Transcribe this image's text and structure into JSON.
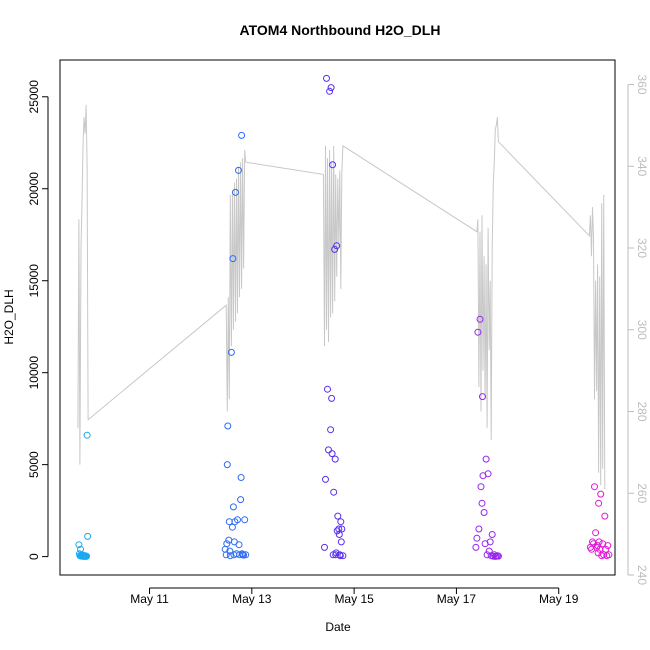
{
  "chart_data": {
    "type": "scatter",
    "title": "ATOM4 Northbound H2O_DLH",
    "xlabel": "Date",
    "ylabel": "H2O_DLH",
    "x_tick_labels": [
      "May 11",
      "May 13",
      "May 15",
      "May 17",
      "May 19"
    ],
    "x_tick_days": [
      11,
      13,
      15,
      17,
      19
    ],
    "xlim_days": [
      9.25,
      20.1
    ],
    "ylim": [
      -1000,
      27000
    ],
    "y_ticks": [
      0,
      5000,
      10000,
      15000,
      20000,
      25000
    ],
    "y2lim": [
      240,
      366
    ],
    "y2_ticks": [
      240,
      260,
      280,
      300,
      320,
      340,
      360
    ],
    "grid": false,
    "legend": "none",
    "colors": {
      "line": "#c8c8c8",
      "axis": "#000000",
      "right_axis": "#bdbdbd",
      "flight1": "#19a9f0",
      "flight2": "#2f6cf5",
      "flight3": "#5a2ef2",
      "flight4": "#9626ee",
      "flight5": "#e21ad4"
    },
    "series": [
      {
        "color_key": "flight1",
        "x": [
          9.62,
          9.63,
          9.64,
          9.65,
          9.66,
          9.67,
          9.68,
          9.69,
          9.7,
          9.71,
          9.72,
          9.73,
          9.74,
          9.75,
          9.76,
          9.77,
          9.78,
          9.79
        ],
        "y": [
          650,
          150,
          50,
          400,
          30,
          80,
          100,
          20,
          50,
          10,
          60,
          20,
          10,
          40,
          10,
          20,
          6600,
          1100
        ]
      },
      {
        "color_key": "flight2",
        "x": [
          12.48,
          12.5,
          12.51,
          12.52,
          12.53,
          12.55,
          12.56,
          12.57,
          12.58,
          12.6,
          12.62,
          12.63,
          12.64,
          12.65,
          12.66,
          12.67,
          12.68,
          12.7,
          12.72,
          12.74,
          12.75,
          12.76,
          12.78,
          12.79,
          12.8,
          12.81,
          12.82,
          12.84,
          12.86,
          12.88
        ],
        "y": [
          400,
          100,
          700,
          5000,
          7100,
          900,
          1900,
          300,
          50,
          11100,
          1600,
          16200,
          2700,
          100,
          800,
          1900,
          19800,
          150,
          2000,
          21000,
          650,
          100,
          3100,
          4300,
          22900,
          150,
          100,
          80,
          2000,
          100
        ]
      },
      {
        "color_key": "flight3",
        "x": [
          14.42,
          14.44,
          14.46,
          14.48,
          14.5,
          14.52,
          14.54,
          14.55,
          14.56,
          14.57,
          14.58,
          14.59,
          14.6,
          14.62,
          14.63,
          14.64,
          14.65,
          14.66,
          14.67,
          14.68,
          14.7,
          14.71,
          14.72,
          14.73,
          14.74,
          14.75,
          14.76,
          14.78
        ],
        "y": [
          500,
          4200,
          26000,
          9100,
          5800,
          25300,
          6900,
          25500,
          8600,
          5600,
          21300,
          100,
          3500,
          16700,
          5300,
          100,
          200,
          16900,
          1400,
          2200,
          1500,
          1200,
          100,
          50,
          1900,
          800,
          1500,
          50
        ]
      },
      {
        "color_key": "flight4",
        "x": [
          17.38,
          17.4,
          17.42,
          17.44,
          17.46,
          17.48,
          17.5,
          17.51,
          17.52,
          17.54,
          17.56,
          17.58,
          17.6,
          17.62,
          17.64,
          17.66,
          17.68,
          17.7,
          17.72,
          17.74,
          17.76,
          17.78,
          17.8,
          17.82
        ],
        "y": [
          500,
          1000,
          12200,
          1500,
          12900,
          3800,
          2900,
          8700,
          4400,
          2400,
          700,
          5300,
          100,
          4500,
          300,
          800,
          50,
          1200,
          20,
          100,
          10,
          20,
          50,
          30
        ]
      },
      {
        "color_key": "flight5",
        "x": [
          19.62,
          19.64,
          19.66,
          19.68,
          19.7,
          19.72,
          19.74,
          19.76,
          19.77,
          19.78,
          19.79,
          19.8,
          19.82,
          19.84,
          19.86,
          19.88,
          19.9,
          19.92,
          19.94,
          19.96,
          19.98
        ],
        "y": [
          500,
          400,
          800,
          700,
          3800,
          1300,
          500,
          600,
          200,
          2900,
          800,
          400,
          3400,
          50,
          700,
          100,
          2200,
          400,
          50,
          600,
          100
        ]
      }
    ],
    "line_series_y2": {
      "x": [
        9.6,
        9.62,
        9.64,
        9.66,
        9.68,
        9.7,
        9.72,
        9.74,
        9.76,
        9.78,
        9.8,
        12.5,
        12.52,
        12.54,
        12.56,
        12.58,
        12.6,
        12.62,
        12.64,
        12.66,
        12.68,
        12.7,
        12.72,
        12.74,
        12.76,
        12.78,
        12.8,
        12.82,
        12.84,
        12.86,
        12.88,
        14.4,
        14.42,
        14.44,
        14.46,
        14.48,
        14.5,
        14.52,
        14.54,
        14.56,
        14.58,
        14.6,
        14.62,
        14.64,
        14.66,
        14.68,
        14.7,
        14.72,
        14.74,
        14.76,
        14.78,
        17.4,
        17.42,
        17.44,
        17.46,
        17.48,
        17.5,
        17.52,
        17.54,
        17.56,
        17.58,
        17.6,
        17.62,
        17.64,
        17.66,
        17.68,
        17.7,
        17.72,
        17.74,
        17.76,
        17.78,
        17.8,
        17.82,
        19.6,
        19.62,
        19.64,
        19.66,
        19.68,
        19.7,
        19.72,
        19.74,
        19.76,
        19.78,
        19.8,
        19.82,
        19.84,
        19.86,
        19.88,
        19.9
      ],
      "y": [
        276,
        327,
        267,
        320,
        331,
        345,
        352,
        348,
        355,
        340,
        278,
        306,
        280,
        308,
        283,
        333,
        296,
        334,
        300,
        336,
        302,
        337,
        304,
        340,
        308,
        341,
        310,
        342,
        315,
        344,
        341,
        338,
        296,
        345,
        300,
        342,
        297,
        344,
        303,
        341,
        304,
        345,
        307,
        338,
        313,
        337,
        320,
        339,
        310,
        338,
        345,
        324,
        327,
        286,
        324,
        280,
        328,
        290,
        318,
        283,
        316,
        276,
        325,
        295,
        312,
        273,
        320,
        336,
        341,
        349,
        350,
        352,
        346,
        323,
        328,
        318,
        330,
        323,
        283,
        312,
        285,
        316,
        265,
        313,
        262,
        331,
        266,
        333,
        261
      ]
    }
  }
}
